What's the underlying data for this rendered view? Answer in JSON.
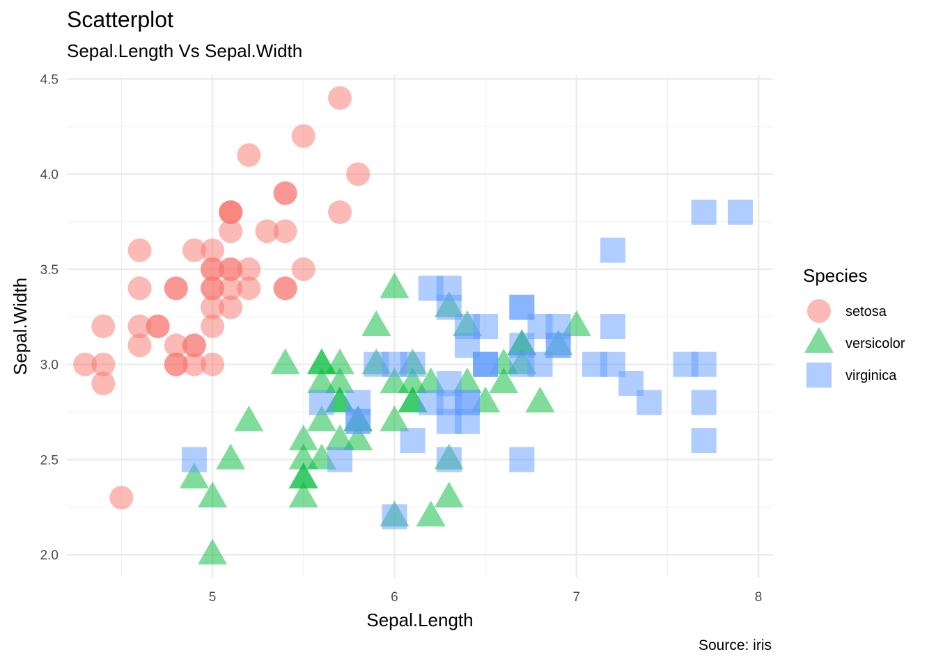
{
  "title": "Scatterplot",
  "subtitle": "Sepal.Length Vs Sepal.Width",
  "caption": "Source: iris",
  "chart_data": {
    "type": "scatter",
    "xlabel": "Sepal.Length",
    "ylabel": "Sepal.Width",
    "xlim": [
      4.2,
      8.08
    ],
    "ylim": [
      1.88,
      4.52
    ],
    "x_ticks": [
      5,
      6,
      7,
      8
    ],
    "x_tick_labels": [
      "5",
      "6",
      "7",
      "8"
    ],
    "y_ticks": [
      2.0,
      2.5,
      3.0,
      3.5,
      4.0,
      4.5
    ],
    "y_tick_labels": [
      "2.0",
      "2.5",
      "3.0",
      "3.5",
      "4.0",
      "4.5"
    ],
    "grid": true,
    "legend": {
      "title": "Species",
      "placement": "right"
    },
    "series": [
      {
        "name": "setosa",
        "shape": "circle",
        "color": "#F8766D",
        "points": [
          [
            5.1,
            3.5
          ],
          [
            4.9,
            3.0
          ],
          [
            4.7,
            3.2
          ],
          [
            4.6,
            3.1
          ],
          [
            5.0,
            3.6
          ],
          [
            5.4,
            3.9
          ],
          [
            4.6,
            3.4
          ],
          [
            5.0,
            3.4
          ],
          [
            4.4,
            2.9
          ],
          [
            4.9,
            3.1
          ],
          [
            5.4,
            3.7
          ],
          [
            4.8,
            3.4
          ],
          [
            4.8,
            3.0
          ],
          [
            4.3,
            3.0
          ],
          [
            5.8,
            4.0
          ],
          [
            5.7,
            4.4
          ],
          [
            5.4,
            3.9
          ],
          [
            5.1,
            3.5
          ],
          [
            5.7,
            3.8
          ],
          [
            5.1,
            3.8
          ],
          [
            5.4,
            3.4
          ],
          [
            5.1,
            3.7
          ],
          [
            4.6,
            3.6
          ],
          [
            5.1,
            3.3
          ],
          [
            4.8,
            3.4
          ],
          [
            5.0,
            3.0
          ],
          [
            5.0,
            3.4
          ],
          [
            5.2,
            3.5
          ],
          [
            5.2,
            3.4
          ],
          [
            4.7,
            3.2
          ],
          [
            4.8,
            3.1
          ],
          [
            5.4,
            3.4
          ],
          [
            5.2,
            4.1
          ],
          [
            5.5,
            4.2
          ],
          [
            4.9,
            3.1
          ],
          [
            5.0,
            3.2
          ],
          [
            5.5,
            3.5
          ],
          [
            4.9,
            3.6
          ],
          [
            4.4,
            3.0
          ],
          [
            5.1,
            3.4
          ],
          [
            5.0,
            3.5
          ],
          [
            4.5,
            2.3
          ],
          [
            4.4,
            3.2
          ],
          [
            5.0,
            3.5
          ],
          [
            5.1,
            3.8
          ],
          [
            4.8,
            3.0
          ],
          [
            5.1,
            3.8
          ],
          [
            4.6,
            3.2
          ],
          [
            5.3,
            3.7
          ],
          [
            5.0,
            3.3
          ]
        ]
      },
      {
        "name": "versicolor",
        "shape": "triangle",
        "color": "#00BA38",
        "points": [
          [
            7.0,
            3.2
          ],
          [
            6.4,
            3.2
          ],
          [
            6.9,
            3.1
          ],
          [
            5.5,
            2.3
          ],
          [
            6.5,
            2.8
          ],
          [
            5.7,
            2.8
          ],
          [
            6.3,
            3.3
          ],
          [
            4.9,
            2.4
          ],
          [
            6.6,
            2.9
          ],
          [
            5.2,
            2.7
          ],
          [
            5.0,
            2.0
          ],
          [
            5.9,
            3.0
          ],
          [
            6.0,
            2.2
          ],
          [
            6.1,
            2.9
          ],
          [
            5.6,
            2.9
          ],
          [
            6.7,
            3.1
          ],
          [
            5.6,
            3.0
          ],
          [
            5.8,
            2.7
          ],
          [
            6.2,
            2.2
          ],
          [
            5.6,
            2.5
          ],
          [
            5.9,
            3.2
          ],
          [
            6.1,
            2.8
          ],
          [
            6.3,
            2.5
          ],
          [
            6.1,
            2.8
          ],
          [
            6.4,
            2.9
          ],
          [
            6.6,
            3.0
          ],
          [
            6.8,
            2.8
          ],
          [
            6.7,
            3.0
          ],
          [
            6.0,
            2.9
          ],
          [
            5.7,
            2.6
          ],
          [
            5.5,
            2.4
          ],
          [
            5.5,
            2.4
          ],
          [
            5.8,
            2.7
          ],
          [
            6.0,
            2.7
          ],
          [
            5.4,
            3.0
          ],
          [
            6.0,
            3.4
          ],
          [
            6.7,
            3.1
          ],
          [
            6.3,
            2.3
          ],
          [
            5.6,
            3.0
          ],
          [
            5.5,
            2.5
          ],
          [
            5.5,
            2.6
          ],
          [
            6.1,
            3.0
          ],
          [
            5.8,
            2.6
          ],
          [
            5.0,
            2.3
          ],
          [
            5.6,
            2.7
          ],
          [
            5.7,
            3.0
          ],
          [
            5.7,
            2.9
          ],
          [
            6.2,
            2.9
          ],
          [
            5.1,
            2.5
          ],
          [
            5.7,
            2.8
          ]
        ]
      },
      {
        "name": "virginica",
        "shape": "square",
        "color": "#619CFF",
        "points": [
          [
            6.3,
            3.3
          ],
          [
            5.8,
            2.7
          ],
          [
            7.1,
            3.0
          ],
          [
            6.3,
            2.9
          ],
          [
            6.5,
            3.0
          ],
          [
            7.6,
            3.0
          ],
          [
            4.9,
            2.5
          ],
          [
            7.3,
            2.9
          ],
          [
            6.7,
            2.5
          ],
          [
            7.2,
            3.6
          ],
          [
            6.5,
            3.2
          ],
          [
            6.4,
            2.7
          ],
          [
            6.8,
            3.0
          ],
          [
            5.7,
            2.5
          ],
          [
            5.8,
            2.8
          ],
          [
            6.4,
            3.2
          ],
          [
            6.5,
            3.0
          ],
          [
            7.7,
            3.8
          ],
          [
            7.7,
            2.6
          ],
          [
            6.0,
            2.2
          ],
          [
            6.9,
            3.2
          ],
          [
            5.6,
            2.8
          ],
          [
            7.7,
            2.8
          ],
          [
            6.3,
            2.7
          ],
          [
            6.7,
            3.3
          ],
          [
            7.2,
            3.2
          ],
          [
            6.2,
            2.8
          ],
          [
            6.1,
            3.0
          ],
          [
            6.4,
            2.8
          ],
          [
            7.2,
            3.0
          ],
          [
            7.4,
            2.8
          ],
          [
            7.9,
            3.8
          ],
          [
            6.4,
            2.8
          ],
          [
            6.3,
            2.8
          ],
          [
            6.1,
            2.6
          ],
          [
            7.7,
            3.0
          ],
          [
            6.3,
            3.4
          ],
          [
            6.4,
            3.1
          ],
          [
            6.0,
            3.0
          ],
          [
            6.9,
            3.1
          ],
          [
            6.7,
            3.1
          ],
          [
            6.9,
            3.1
          ],
          [
            5.8,
            2.7
          ],
          [
            6.8,
            3.2
          ],
          [
            6.7,
            3.3
          ],
          [
            6.7,
            3.0
          ],
          [
            6.3,
            2.5
          ],
          [
            6.5,
            3.0
          ],
          [
            6.2,
            3.4
          ],
          [
            5.9,
            3.0
          ]
        ]
      }
    ]
  }
}
